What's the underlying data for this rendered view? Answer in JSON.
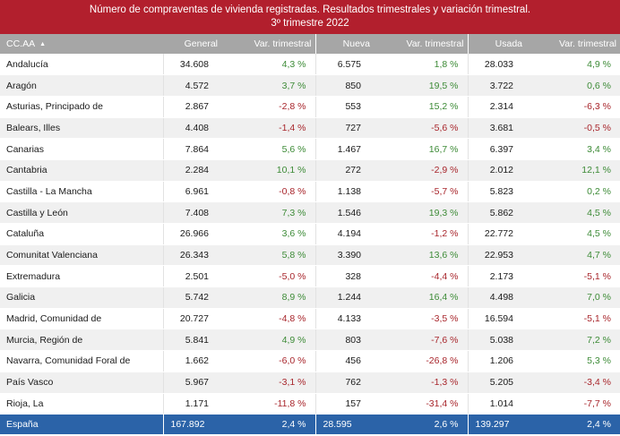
{
  "title": {
    "line1": "Número de compraventas de vivienda registradas. Resultados trimestrales  y variación trimestral.",
    "line2": "3º trimestre 2022"
  },
  "colors": {
    "title_bg": "#b21f2d",
    "header_bg": "#a6a6a6",
    "total_bg": "#2b63a8",
    "positive": "#3d8b37",
    "negative": "#a8262c"
  },
  "header": {
    "name": "CC.AA",
    "sort_icon": "sort-ascending-icon",
    "sort_glyph": "▲",
    "general": "General",
    "general_var": "Var. trimestral",
    "nueva": "Nueva",
    "nueva_var": "Var. trimestral",
    "usada": "Usada",
    "usada_var": "Var. trimestral"
  },
  "rows": [
    {
      "name": "Andalucía",
      "general": "34.608",
      "general_var": "4,3 %",
      "nueva": "6.575",
      "nueva_var": "1,8 %",
      "usada": "28.033",
      "usada_var": "4,9 %"
    },
    {
      "name": "Aragón",
      "general": "4.572",
      "general_var": "3,7 %",
      "nueva": "850",
      "nueva_var": "19,5 %",
      "usada": "3.722",
      "usada_var": "0,6 %"
    },
    {
      "name": "Asturias, Principado de",
      "general": "2.867",
      "general_var": "-2,8 %",
      "nueva": "553",
      "nueva_var": "15,2 %",
      "usada": "2.314",
      "usada_var": "-6,3 %"
    },
    {
      "name": "Balears, Illes",
      "general": "4.408",
      "general_var": "-1,4 %",
      "nueva": "727",
      "nueva_var": "-5,6 %",
      "usada": "3.681",
      "usada_var": "-0,5 %"
    },
    {
      "name": "Canarias",
      "general": "7.864",
      "general_var": "5,6 %",
      "nueva": "1.467",
      "nueva_var": "16,7 %",
      "usada": "6.397",
      "usada_var": "3,4 %"
    },
    {
      "name": "Cantabria",
      "general": "2.284",
      "general_var": "10,1 %",
      "nueva": "272",
      "nueva_var": "-2,9 %",
      "usada": "2.012",
      "usada_var": "12,1 %"
    },
    {
      "name": "Castilla - La Mancha",
      "general": "6.961",
      "general_var": "-0,8 %",
      "nueva": "1.138",
      "nueva_var": "-5,7 %",
      "usada": "5.823",
      "usada_var": "0,2 %"
    },
    {
      "name": "Castilla y León",
      "general": "7.408",
      "general_var": "7,3 %",
      "nueva": "1.546",
      "nueva_var": "19,3 %",
      "usada": "5.862",
      "usada_var": "4,5 %"
    },
    {
      "name": "Cataluña",
      "general": "26.966",
      "general_var": "3,6 %",
      "nueva": "4.194",
      "nueva_var": "-1,2 %",
      "usada": "22.772",
      "usada_var": "4,5 %"
    },
    {
      "name": "Comunitat Valenciana",
      "general": "26.343",
      "general_var": "5,8 %",
      "nueva": "3.390",
      "nueva_var": "13,6 %",
      "usada": "22.953",
      "usada_var": "4,7 %"
    },
    {
      "name": "Extremadura",
      "general": "2.501",
      "general_var": "-5,0 %",
      "nueva": "328",
      "nueva_var": "-4,4 %",
      "usada": "2.173",
      "usada_var": "-5,1 %"
    },
    {
      "name": "Galicia",
      "general": "5.742",
      "general_var": "8,9 %",
      "nueva": "1.244",
      "nueva_var": "16,4 %",
      "usada": "4.498",
      "usada_var": "7,0 %"
    },
    {
      "name": "Madrid, Comunidad de",
      "general": "20.727",
      "general_var": "-4,8 %",
      "nueva": "4.133",
      "nueva_var": "-3,5 %",
      "usada": "16.594",
      "usada_var": "-5,1 %"
    },
    {
      "name": "Murcia, Región de",
      "general": "5.841",
      "general_var": "4,9 %",
      "nueva": "803",
      "nueva_var": "-7,6 %",
      "usada": "5.038",
      "usada_var": "7,2 %"
    },
    {
      "name": "Navarra, Comunidad Foral de",
      "general": "1.662",
      "general_var": "-6,0 %",
      "nueva": "456",
      "nueva_var": "-26,8 %",
      "usada": "1.206",
      "usada_var": "5,3 %"
    },
    {
      "name": "País Vasco",
      "general": "5.967",
      "general_var": "-3,1 %",
      "nueva": "762",
      "nueva_var": "-1,3 %",
      "usada": "5.205",
      "usada_var": "-3,4 %"
    },
    {
      "name": "Rioja, La",
      "general": "1.171",
      "general_var": "-11,8 %",
      "nueva": "157",
      "nueva_var": "-31,4 %",
      "usada": "1.014",
      "usada_var": "-7,7 %"
    }
  ],
  "total": {
    "name": "España",
    "general": "167.892",
    "general_var": "2,4 %",
    "nueva": "28.595",
    "nueva_var": "2,6 %",
    "usada": "139.297",
    "usada_var": "2,4 %"
  }
}
